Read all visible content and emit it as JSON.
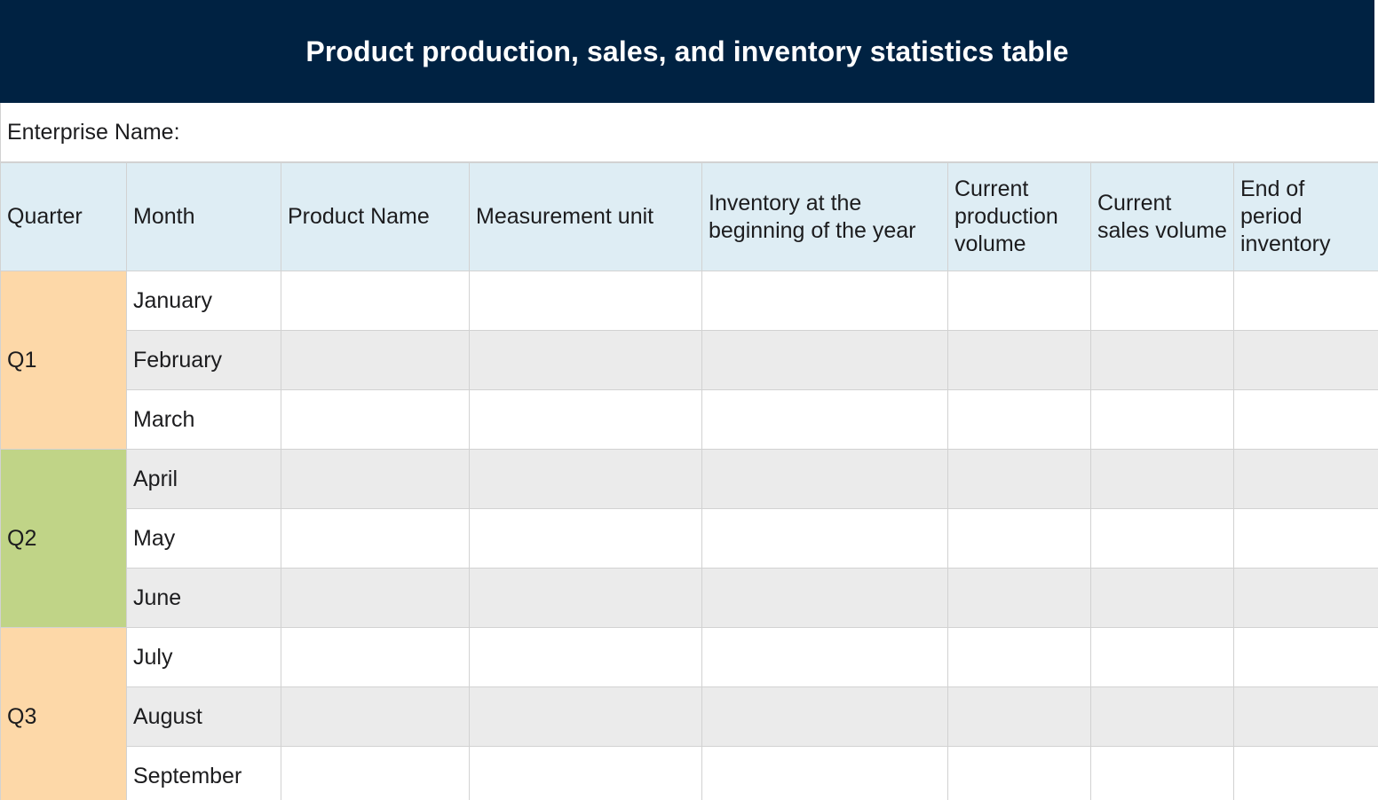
{
  "title": "Product production, sales, and inventory statistics table",
  "enterprise_label": "Enterprise Name:",
  "headers": {
    "quarter": "Quarter",
    "month": "Month",
    "product_name": "Product Name",
    "measurement_unit": "Measurement unit",
    "inventory_beginning": "Inventory at the beginning of the year",
    "production_volume": "Current production volume",
    "sales_volume": "Current sales volume",
    "end_inventory": "End of period inventory"
  },
  "quarters": [
    {
      "label": "Q1",
      "color": "#fdd8a8",
      "months": [
        "January",
        "February",
        "March"
      ]
    },
    {
      "label": "Q2",
      "color": "#c0d487",
      "months": [
        "April",
        "May",
        "June"
      ]
    },
    {
      "label": "Q3",
      "color": "#fdd8a8",
      "months": [
        "July",
        "August",
        "September"
      ]
    }
  ],
  "colors": {
    "title_bg": "#002242",
    "header_bg": "#deedf4",
    "stripe_bg": "#ebebeb"
  }
}
